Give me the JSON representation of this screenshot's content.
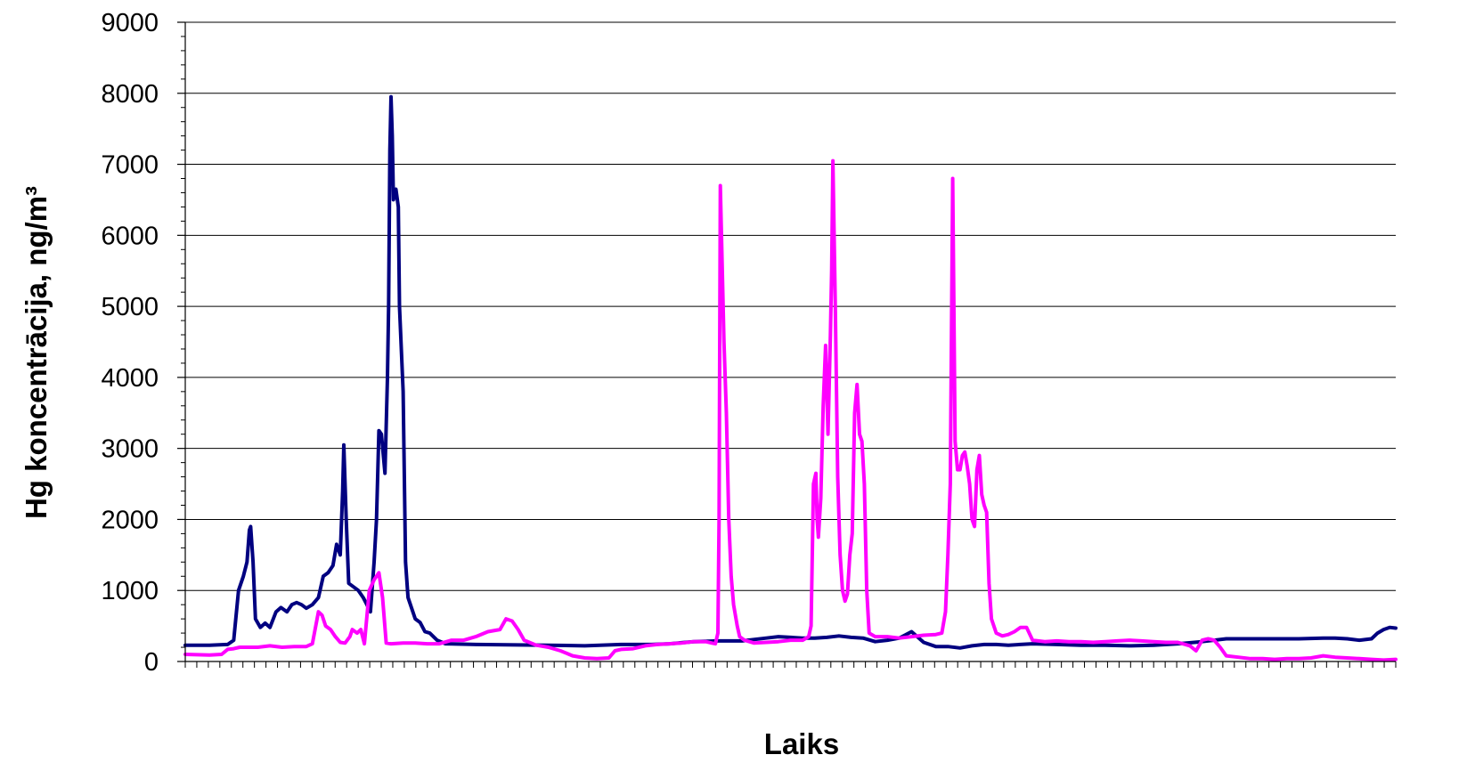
{
  "chart_data": {
    "type": "line",
    "xlabel": "Laiks",
    "ylabel": "Hg koncentrācija, ng/m³",
    "ylim": [
      0,
      9000
    ],
    "yticks": [
      0,
      1000,
      2000,
      3000,
      4000,
      5000,
      6000,
      7000,
      8000,
      9000
    ],
    "grid": "horizontal",
    "legend": "none",
    "xlim": [
      0,
      1000
    ],
    "series": [
      {
        "color": "#000080",
        "points": [
          [
            0,
            230
          ],
          [
            20,
            230
          ],
          [
            35,
            240
          ],
          [
            40,
            300
          ],
          [
            44,
            1000
          ],
          [
            48,
            1200
          ],
          [
            51,
            1400
          ],
          [
            53,
            1850
          ],
          [
            54,
            1900
          ],
          [
            56,
            1400
          ],
          [
            58,
            600
          ],
          [
            62,
            480
          ],
          [
            66,
            540
          ],
          [
            70,
            480
          ],
          [
            75,
            700
          ],
          [
            79,
            760
          ],
          [
            84,
            700
          ],
          [
            88,
            800
          ],
          [
            92,
            830
          ],
          [
            96,
            800
          ],
          [
            100,
            750
          ],
          [
            105,
            800
          ],
          [
            110,
            900
          ],
          [
            114,
            1200
          ],
          [
            118,
            1250
          ],
          [
            122,
            1350
          ],
          [
            125,
            1650
          ],
          [
            128,
            1500
          ],
          [
            130,
            2400
          ],
          [
            131,
            3050
          ],
          [
            133,
            2000
          ],
          [
            135,
            1100
          ],
          [
            139,
            1050
          ],
          [
            143,
            1000
          ],
          [
            147,
            900
          ],
          [
            150,
            800
          ],
          [
            153,
            700
          ],
          [
            156,
            1400
          ],
          [
            158,
            2000
          ],
          [
            160,
            3250
          ],
          [
            162,
            3200
          ],
          [
            165,
            2650
          ],
          [
            167,
            4000
          ],
          [
            168,
            5000
          ],
          [
            169,
            7200
          ],
          [
            170,
            7950
          ],
          [
            171,
            7400
          ],
          [
            172,
            6500
          ],
          [
            174,
            6650
          ],
          [
            176,
            6400
          ],
          [
            177,
            5000
          ],
          [
            180,
            3800
          ],
          [
            182,
            1400
          ],
          [
            184,
            900
          ],
          [
            190,
            600
          ],
          [
            194,
            550
          ],
          [
            198,
            420
          ],
          [
            202,
            400
          ],
          [
            208,
            300
          ],
          [
            215,
            250
          ],
          [
            240,
            240
          ],
          [
            300,
            230
          ],
          [
            330,
            220
          ],
          [
            360,
            240
          ],
          [
            385,
            240
          ],
          [
            400,
            250
          ],
          [
            420,
            280
          ],
          [
            440,
            290
          ],
          [
            460,
            290
          ],
          [
            480,
            330
          ],
          [
            490,
            350
          ],
          [
            500,
            340
          ],
          [
            510,
            330
          ],
          [
            520,
            330
          ],
          [
            530,
            340
          ],
          [
            540,
            360
          ],
          [
            550,
            340
          ],
          [
            560,
            330
          ],
          [
            570,
            280
          ],
          [
            580,
            300
          ],
          [
            590,
            330
          ],
          [
            600,
            420
          ],
          [
            610,
            270
          ],
          [
            620,
            210
          ],
          [
            630,
            210
          ],
          [
            640,
            190
          ],
          [
            650,
            220
          ],
          [
            660,
            240
          ],
          [
            670,
            240
          ],
          [
            680,
            230
          ],
          [
            700,
            250
          ],
          [
            720,
            240
          ],
          [
            740,
            230
          ],
          [
            760,
            230
          ],
          [
            780,
            220
          ],
          [
            800,
            230
          ],
          [
            820,
            250
          ],
          [
            840,
            280
          ],
          [
            860,
            320
          ],
          [
            880,
            320
          ],
          [
            900,
            320
          ],
          [
            920,
            320
          ],
          [
            940,
            330
          ],
          [
            950,
            330
          ],
          [
            960,
            320
          ],
          [
            970,
            300
          ],
          [
            980,
            320
          ],
          [
            985,
            400
          ],
          [
            990,
            450
          ],
          [
            995,
            480
          ],
          [
            1000,
            470
          ]
        ]
      },
      {
        "color": "#ff00ff",
        "points": [
          [
            0,
            100
          ],
          [
            20,
            90
          ],
          [
            30,
            100
          ],
          [
            35,
            170
          ],
          [
            40,
            180
          ],
          [
            45,
            200
          ],
          [
            50,
            200
          ],
          [
            60,
            200
          ],
          [
            70,
            220
          ],
          [
            80,
            200
          ],
          [
            90,
            210
          ],
          [
            100,
            210
          ],
          [
            105,
            250
          ],
          [
            110,
            700
          ],
          [
            113,
            650
          ],
          [
            116,
            500
          ],
          [
            120,
            450
          ],
          [
            124,
            350
          ],
          [
            128,
            270
          ],
          [
            132,
            260
          ],
          [
            136,
            350
          ],
          [
            138,
            450
          ],
          [
            142,
            400
          ],
          [
            145,
            450
          ],
          [
            148,
            250
          ],
          [
            152,
            1000
          ],
          [
            156,
            1150
          ],
          [
            160,
            1250
          ],
          [
            163,
            900
          ],
          [
            166,
            260
          ],
          [
            170,
            250
          ],
          [
            180,
            260
          ],
          [
            190,
            260
          ],
          [
            200,
            250
          ],
          [
            210,
            250
          ],
          [
            220,
            300
          ],
          [
            230,
            300
          ],
          [
            240,
            350
          ],
          [
            250,
            420
          ],
          [
            260,
            450
          ],
          [
            265,
            600
          ],
          [
            270,
            570
          ],
          [
            275,
            450
          ],
          [
            280,
            300
          ],
          [
            290,
            230
          ],
          [
            300,
            200
          ],
          [
            310,
            150
          ],
          [
            320,
            80
          ],
          [
            330,
            50
          ],
          [
            340,
            40
          ],
          [
            350,
            50
          ],
          [
            355,
            150
          ],
          [
            360,
            170
          ],
          [
            370,
            180
          ],
          [
            380,
            220
          ],
          [
            390,
            240
          ],
          [
            400,
            250
          ],
          [
            410,
            260
          ],
          [
            420,
            280
          ],
          [
            430,
            280
          ],
          [
            435,
            260
          ],
          [
            438,
            250
          ],
          [
            440,
            400
          ],
          [
            441,
            2000
          ],
          [
            442,
            6700
          ],
          [
            443,
            6000
          ],
          [
            445,
            4500
          ],
          [
            447,
            3500
          ],
          [
            449,
            2000
          ],
          [
            451,
            1200
          ],
          [
            453,
            800
          ],
          [
            456,
            500
          ],
          [
            458,
            350
          ],
          [
            462,
            300
          ],
          [
            470,
            260
          ],
          [
            480,
            270
          ],
          [
            490,
            280
          ],
          [
            500,
            300
          ],
          [
            510,
            300
          ],
          [
            515,
            350
          ],
          [
            517,
            500
          ],
          [
            519,
            2500
          ],
          [
            521,
            2650
          ],
          [
            522,
            2000
          ],
          [
            523,
            1750
          ],
          [
            525,
            2300
          ],
          [
            527,
            3600
          ],
          [
            529,
            4450
          ],
          [
            531,
            3200
          ],
          [
            533,
            4600
          ],
          [
            534,
            5500
          ],
          [
            535,
            7050
          ],
          [
            537,
            5000
          ],
          [
            539,
            2600
          ],
          [
            541,
            1500
          ],
          [
            543,
            1000
          ],
          [
            545,
            850
          ],
          [
            547,
            950
          ],
          [
            549,
            1500
          ],
          [
            551,
            1800
          ],
          [
            553,
            3500
          ],
          [
            555,
            3900
          ],
          [
            557,
            3200
          ],
          [
            559,
            3100
          ],
          [
            561,
            2500
          ],
          [
            563,
            1000
          ],
          [
            565,
            400
          ],
          [
            570,
            350
          ],
          [
            580,
            350
          ],
          [
            590,
            330
          ],
          [
            600,
            350
          ],
          [
            610,
            370
          ],
          [
            620,
            380
          ],
          [
            625,
            400
          ],
          [
            628,
            700
          ],
          [
            630,
            1500
          ],
          [
            632,
            2500
          ],
          [
            634,
            6800
          ],
          [
            636,
            3100
          ],
          [
            638,
            2700
          ],
          [
            640,
            2700
          ],
          [
            642,
            2900
          ],
          [
            644,
            2950
          ],
          [
            646,
            2750
          ],
          [
            648,
            2500
          ],
          [
            650,
            2000
          ],
          [
            652,
            1900
          ],
          [
            654,
            2700
          ],
          [
            656,
            2900
          ],
          [
            658,
            2350
          ],
          [
            660,
            2200
          ],
          [
            662,
            2100
          ],
          [
            664,
            1100
          ],
          [
            666,
            600
          ],
          [
            670,
            400
          ],
          [
            675,
            360
          ],
          [
            680,
            380
          ],
          [
            685,
            420
          ],
          [
            690,
            480
          ],
          [
            695,
            480
          ],
          [
            700,
            300
          ],
          [
            710,
            280
          ],
          [
            720,
            290
          ],
          [
            730,
            280
          ],
          [
            740,
            280
          ],
          [
            750,
            270
          ],
          [
            760,
            280
          ],
          [
            770,
            290
          ],
          [
            780,
            300
          ],
          [
            790,
            290
          ],
          [
            800,
            280
          ],
          [
            810,
            270
          ],
          [
            820,
            270
          ],
          [
            830,
            220
          ],
          [
            835,
            150
          ],
          [
            840,
            300
          ],
          [
            845,
            320
          ],
          [
            850,
            300
          ],
          [
            855,
            200
          ],
          [
            860,
            80
          ],
          [
            870,
            60
          ],
          [
            880,
            40
          ],
          [
            890,
            40
          ],
          [
            900,
            30
          ],
          [
            910,
            40
          ],
          [
            920,
            40
          ],
          [
            930,
            50
          ],
          [
            940,
            80
          ],
          [
            950,
            60
          ],
          [
            960,
            50
          ],
          [
            970,
            40
          ],
          [
            980,
            30
          ],
          [
            990,
            20
          ],
          [
            1000,
            30
          ]
        ]
      }
    ]
  }
}
